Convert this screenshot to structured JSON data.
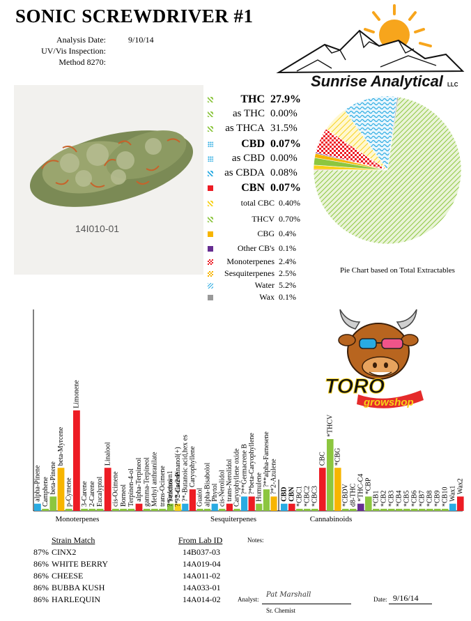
{
  "header": {
    "title": "SONIC SCREWDRIVER #1",
    "analysis_date_label": "Analysis Date:",
    "analysis_date": "9/10/14",
    "uvvis_label": "UV/Vis Inspection:",
    "method_label": "Method 8270:"
  },
  "logo": {
    "company": "Sunrise Analytical",
    "suffix": "LLC"
  },
  "photo": {
    "sample_id": "14I010-01"
  },
  "cannabinoids": [
    {
      "name": "THC",
      "value": "27.9%",
      "style": "big",
      "color": "#8cc63f",
      "pattern": "hatch"
    },
    {
      "name": "as THC",
      "value": "0.00%",
      "style": "mid",
      "color": "#8cc63f",
      "pattern": "hatch"
    },
    {
      "name": "as THCA",
      "value": "31.5%",
      "style": "mid",
      "color": "#8cc63f",
      "pattern": "hatch"
    },
    {
      "name": "CBD",
      "value": "0.07%",
      "style": "big",
      "color": "#29abe2",
      "pattern": "dots"
    },
    {
      "name": "as CBD",
      "value": "0.00%",
      "style": "mid",
      "color": "#29abe2",
      "pattern": "dots"
    },
    {
      "name": "as CBDA",
      "value": "0.08%",
      "style": "mid",
      "color": "#29abe2",
      "pattern": "hatch"
    },
    {
      "name": "CBN",
      "value": "0.07%",
      "style": "big",
      "color": "#ed1c24",
      "pattern": "solid"
    },
    {
      "name": "total CBC",
      "value": "0.40%",
      "style": "sm",
      "color": "#f7d117",
      "pattern": "hatch"
    },
    {
      "name": "THCV",
      "value": "0.70%",
      "style": "sm",
      "color": "#8cc63f",
      "pattern": "hatch"
    },
    {
      "name": "CBG",
      "value": "0.4%",
      "style": "sm",
      "color": "#f7b500",
      "pattern": "solid"
    },
    {
      "name": "Other CB's",
      "value": "0.1%",
      "style": "sm",
      "color": "#662d91",
      "pattern": "solid"
    },
    {
      "name": "Monoterpenes",
      "value": "2.4%",
      "style": "sm",
      "color": "#ed1c24",
      "pattern": "check"
    },
    {
      "name": "Sesquiterpenes",
      "value": "2.5%",
      "style": "sm",
      "color": "#f7b500",
      "pattern": "check"
    },
    {
      "name": "Water",
      "value": "5.2%",
      "style": "sm",
      "color": "#29abe2",
      "pattern": "wave"
    },
    {
      "name": "Wax",
      "value": "0.1%",
      "style": "sm",
      "color": "#999999",
      "pattern": "solid"
    }
  ],
  "pie": {
    "caption": "Pie Chart based on Total Extractables",
    "slices": [
      {
        "label": "THCA",
        "value": 31.5,
        "color": "#8cc63f",
        "pattern": "hatch"
      },
      {
        "label": "CBN",
        "value": 0.07,
        "color": "#ed1c24",
        "pattern": "solid"
      },
      {
        "label": "CBC",
        "value": 0.4,
        "color": "#f7d117",
        "pattern": "solid"
      },
      {
        "label": "THCV",
        "value": 0.7,
        "color": "#8cc63f",
        "pattern": "solid"
      },
      {
        "label": "CBG",
        "value": 0.4,
        "color": "#f7b500",
        "pattern": "solid"
      },
      {
        "label": "Other",
        "value": 0.1,
        "color": "#662d91",
        "pattern": "solid"
      },
      {
        "label": "Monoterpenes",
        "value": 2.4,
        "color": "#ed1c24",
        "pattern": "check"
      },
      {
        "label": "Sesquiterpenes",
        "value": 2.5,
        "color": "#f7d117",
        "pattern": "check"
      },
      {
        "label": "Water",
        "value": 5.2,
        "color": "#29abe2",
        "pattern": "wave"
      },
      {
        "label": "Wax",
        "value": 0.1,
        "color": "#999999",
        "pattern": "solid"
      }
    ]
  },
  "toro_logo": {
    "line1": "TORO",
    "line2": "growshop"
  },
  "chart_data": {
    "type": "bar",
    "groups": [
      {
        "name": "Monoterpenes",
        "items": [
          {
            "label": "alpha-Pinene",
            "value": 1,
            "color": "#29abe2"
          },
          {
            "label": "Camphene",
            "value": 0,
            "color": "#8cc63f"
          },
          {
            "label": "beta-Pinene",
            "value": 2,
            "color": "#8cc63f"
          },
          {
            "label": "beta-Myrcene",
            "value": 6,
            "color": "#f7b500"
          },
          {
            "label": "p-Cymene",
            "value": 0,
            "color": "#8cc63f"
          },
          {
            "label": "Limonene",
            "value": 14,
            "color": "#ed1c24"
          },
          {
            "label": "3-Carene",
            "value": 0,
            "color": "#8cc63f"
          },
          {
            "label": "2-Carene",
            "value": 0,
            "color": "#8cc63f"
          },
          {
            "label": "Eucalyptol",
            "value": 0,
            "color": "#8cc63f"
          },
          {
            "label": "Linalool",
            "value": 6,
            "color": "#ed1c24"
          },
          {
            "label": "cis-Ocimene",
            "value": 0,
            "color": "#8cc63f"
          },
          {
            "label": "Borneol",
            "value": 0,
            "color": "#8cc63f"
          },
          {
            "label": "Terpinen-4-ol",
            "value": 0,
            "color": "#8cc63f"
          },
          {
            "label": "alpha-Terpineol",
            "value": 1,
            "color": "#ed1c24"
          },
          {
            "label": "gamma-Terpineol",
            "value": 0,
            "color": "#8cc63f"
          },
          {
            "label": "Methyl anthranilate",
            "value": 0,
            "color": "#8cc63f"
          },
          {
            "label": "trans-Ocimene",
            "value": 0,
            "color": "#8cc63f"
          },
          {
            "label": "?*unknown1",
            "value": 0,
            "color": "#8cc63f"
          },
          {
            "label": "?*-2-Carene",
            "value": 0,
            "color": "#8cc63f"
          }
        ]
      },
      {
        "name": "Sesquiterpenes",
        "items": [
          {
            "label": "Fenchol",
            "value": 1,
            "color": "#8cc63f"
          },
          {
            "label": "?*-cis-2-Pinanol(+)",
            "value": 1,
            "color": "#f7d117"
          },
          {
            "label": "?*-Butanoic acid,hex es",
            "value": 1,
            "color": "#29abe2"
          },
          {
            "label": "Caryophyllene",
            "value": 3,
            "color": "#ed1c24"
          },
          {
            "label": "Guaiol",
            "value": 0,
            "color": "#8cc63f"
          },
          {
            "label": "alpha-Bisabolol",
            "value": 0,
            "color": "#8cc63f"
          },
          {
            "label": "Phytol",
            "value": 1,
            "color": "#29abe2"
          },
          {
            "label": "cis-Nerolidol",
            "value": 0,
            "color": "#8cc63f"
          },
          {
            "label": "trans-Nerolidol",
            "value": 1,
            "color": "#ed1c24"
          },
          {
            "label": "Caryophyllene oxide",
            "value": 0,
            "color": "#8cc63f"
          },
          {
            "label": "?**Germacrene B",
            "value": 2,
            "color": "#29abe2"
          },
          {
            "label": "?*beta-Caryophyllene",
            "value": 2,
            "color": "#ed1c24"
          },
          {
            "label": "Humulene",
            "value": 1,
            "color": "#8cc63f"
          },
          {
            "label": "?**alpha-Farnesene",
            "value": 3,
            "color": "#8cc63f"
          },
          {
            "label": "?*2-Azulene",
            "value": 2,
            "color": "#f7b500"
          }
        ]
      },
      {
        "name": "Cannabinoids",
        "items": [
          {
            "label": "CBD",
            "value": 1,
            "color": "#29abe2",
            "bold": true
          },
          {
            "label": "CBN",
            "value": 1,
            "color": "#ed1c24",
            "bold": true
          },
          {
            "label": "*CBC1",
            "value": 0,
            "color": "#8cc63f"
          },
          {
            "label": "*CBC2",
            "value": 0,
            "color": "#8cc63f"
          },
          {
            "label": "*CBC3",
            "value": 0,
            "color": "#8cc63f"
          },
          {
            "label": "CBC",
            "value": 6,
            "color": "#ed1c24"
          },
          {
            "label": "*THCV",
            "value": 10,
            "color": "#8cc63f"
          },
          {
            "label": "*CBG",
            "value": 6,
            "color": "#f7b500"
          },
          {
            "label": "*CBDV",
            "value": 0,
            "color": "#8cc63f"
          },
          {
            "label": "d8-THC",
            "value": 0,
            "color": "#8cc63f"
          },
          {
            "label": "*THC-C4",
            "value": 1,
            "color": "#662d91"
          },
          {
            "label": "*CBP",
            "value": 2,
            "color": "#8cc63f"
          },
          {
            "label": "*CB1",
            "value": 0,
            "color": "#8cc63f"
          },
          {
            "label": "*CB2",
            "value": 0,
            "color": "#8cc63f"
          },
          {
            "label": "*CB3",
            "value": 0,
            "color": "#8cc63f"
          },
          {
            "label": "*CB4",
            "value": 0,
            "color": "#8cc63f"
          },
          {
            "label": "*CB5",
            "value": 0,
            "color": "#8cc63f"
          },
          {
            "label": "*CB6",
            "value": 0,
            "color": "#8cc63f"
          },
          {
            "label": "*CB7",
            "value": 0,
            "color": "#8cc63f"
          },
          {
            "label": "*CB8",
            "value": 0,
            "color": "#8cc63f"
          },
          {
            "label": "*CB9",
            "value": 0,
            "color": "#8cc63f"
          },
          {
            "label": "*CB10",
            "value": 0,
            "color": "#8cc63f"
          },
          {
            "label": "Wax1",
            "value": 1,
            "color": "#29abe2"
          },
          {
            "label": "Wax2",
            "value": 2,
            "color": "#ed1c24"
          }
        ]
      }
    ]
  },
  "strain_match": {
    "header_strain": "Strain Match",
    "header_lab": "From Lab ID",
    "rows": [
      {
        "pct": "87%",
        "name": "CINX2",
        "lab_id": "14B037-03"
      },
      {
        "pct": "86%",
        "name": "WHITE BERRY",
        "lab_id": "14A019-04"
      },
      {
        "pct": "86%",
        "name": "CHEESE",
        "lab_id": "14A011-02"
      },
      {
        "pct": "86%",
        "name": "BUBBA KUSH",
        "lab_id": "14A033-01"
      },
      {
        "pct": "86%",
        "name": "HARLEQUIN",
        "lab_id": "14A014-02"
      }
    ]
  },
  "footer": {
    "notes_label": "Notes:",
    "analyst_label": "Analyst:",
    "signature": "Pat Marshall",
    "role": "Sr. Chemist",
    "date_label": "Date:",
    "date": "9/16/14"
  }
}
